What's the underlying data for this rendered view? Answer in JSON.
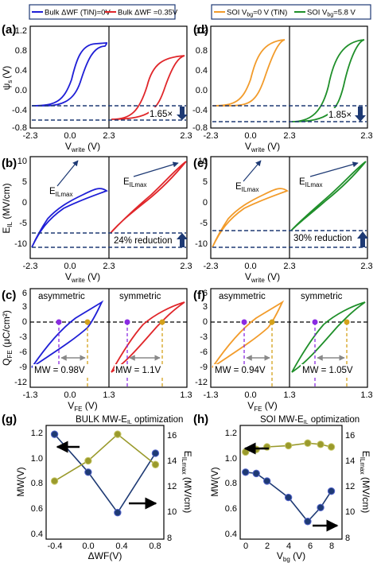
{
  "colors": {
    "blue": "#1f1fd6",
    "red": "#e0262a",
    "orange": "#f29b2a",
    "green": "#1f8f2a",
    "navy": "#1e3a74",
    "olive": "#9a9a2c",
    "purple": "#8a2be2",
    "gold": "#d4a21b",
    "dark": "#152a6a",
    "title_red": "#c8161d",
    "sym_green": "#3a8a2a",
    "asym_gold": "#a8860f"
  },
  "legend_left": [
    "Bulk ΔWF (TiN)=0V",
    "Bulk ΔWF =0.35V"
  ],
  "legend_right": {
    "a_pre": "SOI V",
    "a_sub": "bg",
    "a_post": "=0 V (TiN)",
    "b_pre": "SOI V",
    "b_sub": "bg",
    "b_post": "=5.8 V"
  },
  "panels": {
    "a": "(a)",
    "b": "(b)",
    "c": "(c)",
    "d": "(d)",
    "e": "(e)",
    "f": "(f)",
    "g": "(g)",
    "h": "(h)"
  },
  "labels": {
    "psi_main": "ψ",
    "psi_sub": "s",
    "psi_unit": "(V)",
    "vwrite_main": "V",
    "vwrite_sub": "write",
    "vwrite_unit": " (V)",
    "eil_main": "E",
    "eil_sub": "IL",
    "eil_unit": " (MV/cm)",
    "eilmax_main": "E",
    "eilmax_sub": "ILmax",
    "qfe_main": "Q",
    "qfe_sub": "FE",
    "qfe_unit": " (μC/cm²)",
    "vfe_main": "V",
    "vfe_sub": "FE",
    "vfe_unit": " (V)",
    "mw": "MW(V)",
    "eilmax_unit": " (MV/cm)",
    "dwf": "ΔWF(V)",
    "vbg_main": "V",
    "vbg_sub": "bg",
    "vbg_unit": " (V)",
    "asym": "asymmetric",
    "sym": "symmetric",
    "title_g_pre": "BULK MW-E",
    "title_g_sub": "IL",
    "title_g_post": " optimization",
    "title_h_pre": "SOI MW-E",
    "title_h_sub": "IL",
    "title_h_post": " optimization"
  },
  "annotations": {
    "a_ratio": "1.65×",
    "d_ratio": "1.85×",
    "b_red": "24% reduction",
    "e_red": "30% reduction",
    "mw_c1": "MW = 0.98V",
    "mw_c2": "MW = 1.1V",
    "mw_f1": "MW = 0.94V",
    "mw_f2": "MW = 1.05V"
  },
  "axes": {
    "psi_ticks": [
      "1.2",
      "0.8",
      "0.4",
      "0.0",
      "-0.4",
      "-0.8"
    ],
    "vw_ticks": [
      "-2.3",
      "0.0",
      "2.3",
      "2.3"
    ],
    "eil_ticks": [
      "10",
      "5",
      "0",
      "-5",
      "-10"
    ],
    "q_ticks": [
      "6",
      "3",
      "0",
      "-3",
      "-6",
      "-9",
      "-12"
    ],
    "vfe_ticks": [
      "-1.3",
      "0.0",
      "1.3",
      "1.3"
    ],
    "mw_ticks": [
      "1.2",
      "1.0",
      "0.8",
      "0.6",
      "0.4"
    ],
    "e_ticks": [
      "16",
      "14",
      "12",
      "10",
      "8"
    ],
    "dwf_ticks": [
      "-0.4",
      "0.0",
      "0.4",
      "0.8"
    ],
    "vbg_ticks": [
      "0",
      "2",
      "4",
      "6",
      "8"
    ]
  },
  "chart_data": [
    {
      "type": "line",
      "panel": "(a)",
      "xlabel": "Vwrite (V)",
      "ylabel": "ψs (V)",
      "ylim": [
        -0.8,
        1.2
      ],
      "series": [
        {
          "name": "Bulk ΔWF (TiN)=0V",
          "min": -0.4,
          "max": 0.92
        },
        {
          "name": "Bulk ΔWF =0.35V",
          "min": -0.66,
          "max": 0.68
        }
      ],
      "ratio_label": "1.65×"
    },
    {
      "type": "line",
      "panel": "(b)",
      "xlabel": "Vwrite (V)",
      "ylabel": "EIL (MV/cm)",
      "ylim": [
        -13,
        11
      ],
      "series": [
        {
          "name": "Bulk ΔWF (TiN)=0V",
          "min": -13,
          "max": 6.5
        },
        {
          "name": "Bulk ΔWF =0.35V",
          "min": -9.5,
          "max": 10
        }
      ],
      "annotation": "24% reduction"
    },
    {
      "type": "line",
      "panel": "(c)",
      "xlabel": "VFE (V)",
      "ylabel": "QFE (μC/cm²)",
      "ylim": [
        -12,
        6
      ],
      "series": [
        {
          "name": "asymmetric",
          "coercive": [
            -0.32,
            0.66
          ],
          "MW": 0.98
        },
        {
          "name": "symmetric",
          "coercive": [
            -0.55,
            0.55
          ],
          "MW": 1.1
        }
      ]
    },
    {
      "type": "line",
      "panel": "(d)",
      "xlabel": "Vwrite (V)",
      "ylabel": "ψs (V)",
      "ylim": [
        -0.8,
        1.2
      ],
      "series": [
        {
          "name": "SOI Vbg=0 V (TiN)",
          "min": -0.4,
          "max": 0.9
        },
        {
          "name": "SOI Vbg=5.8 V",
          "min": -0.74,
          "max": 0.9
        }
      ],
      "ratio_label": "1.85×"
    },
    {
      "type": "line",
      "panel": "(e)",
      "xlabel": "Vwrite (V)",
      "ylabel": "EIL (MV/cm)",
      "ylim": [
        -13,
        11
      ],
      "series": [
        {
          "name": "SOI Vbg=0 V (TiN)",
          "min": -13,
          "max": 6.5
        },
        {
          "name": "SOI Vbg=5.8 V",
          "min": -9,
          "max": 10
        }
      ],
      "annotation": "30% reduction"
    },
    {
      "type": "line",
      "panel": "(f)",
      "xlabel": "VFE (V)",
      "ylabel": "QFE (μC/cm²)",
      "ylim": [
        -12,
        6
      ],
      "series": [
        {
          "name": "asymmetric",
          "coercive": [
            -0.3,
            0.64
          ],
          "MW": 0.94
        },
        {
          "name": "symmetric",
          "coercive": [
            -0.52,
            0.53
          ],
          "MW": 1.05
        }
      ]
    },
    {
      "type": "line",
      "panel": "(g)",
      "title": "BULK MW-EIL optimization",
      "xlabel": "ΔWF(V)",
      "ylabel": "MW(V)",
      "y2label": "EILmax (MV/cm)",
      "x": [
        -0.4,
        0.0,
        0.35,
        0.8
      ],
      "xlim": [
        -0.5,
        0.9
      ],
      "ylim": [
        0.3,
        1.2
      ],
      "y2lim": [
        8,
        17
      ],
      "series": [
        {
          "axis": "left",
          "values": [
            1.13,
            0.83,
            0.51,
            0.98
          ]
        },
        {
          "axis": "right",
          "values": [
            12.6,
            14.2,
            16.3,
            13.9
          ]
        }
      ]
    },
    {
      "type": "line",
      "panel": "(h)",
      "title": "SOI MW-EIL optimization",
      "xlabel": "Vbg (V)",
      "ylabel": "MW(V)",
      "y2label": "EILmax (MV/cm)",
      "x": [
        0,
        1,
        2,
        4,
        5.8,
        7,
        8
      ],
      "xlim": [
        -0.5,
        9
      ],
      "ylim": [
        0.3,
        1.2
      ],
      "y2lim": [
        8,
        17
      ],
      "series": [
        {
          "axis": "left",
          "values": [
            0.83,
            0.82,
            0.76,
            0.63,
            0.44,
            0.55,
            0.68
          ]
        },
        {
          "axis": "right",
          "values": [
            14.9,
            15.1,
            15.3,
            15.4,
            15.6,
            15.5,
            15.3
          ]
        }
      ]
    }
  ]
}
